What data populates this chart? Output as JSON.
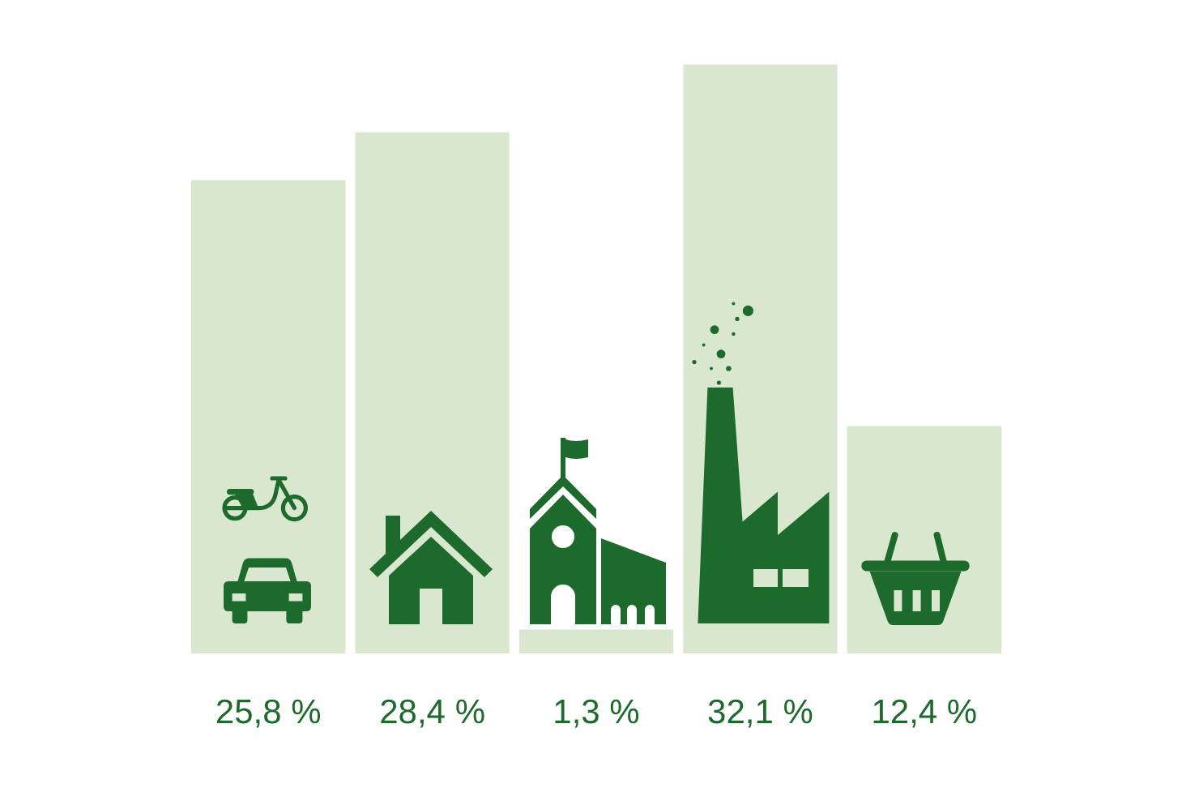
{
  "chart_data": {
    "type": "bar",
    "categories": [
      null,
      null,
      null,
      null,
      null
    ],
    "values": [
      25.8,
      28.4,
      1.3,
      32.1,
      12.4
    ],
    "color": "#d8e7cd",
    "value_labels": [
      "25,8 %",
      "28,4 %",
      "1,3 %",
      "32,1 %",
      "12,4 %"
    ]
  }
}
